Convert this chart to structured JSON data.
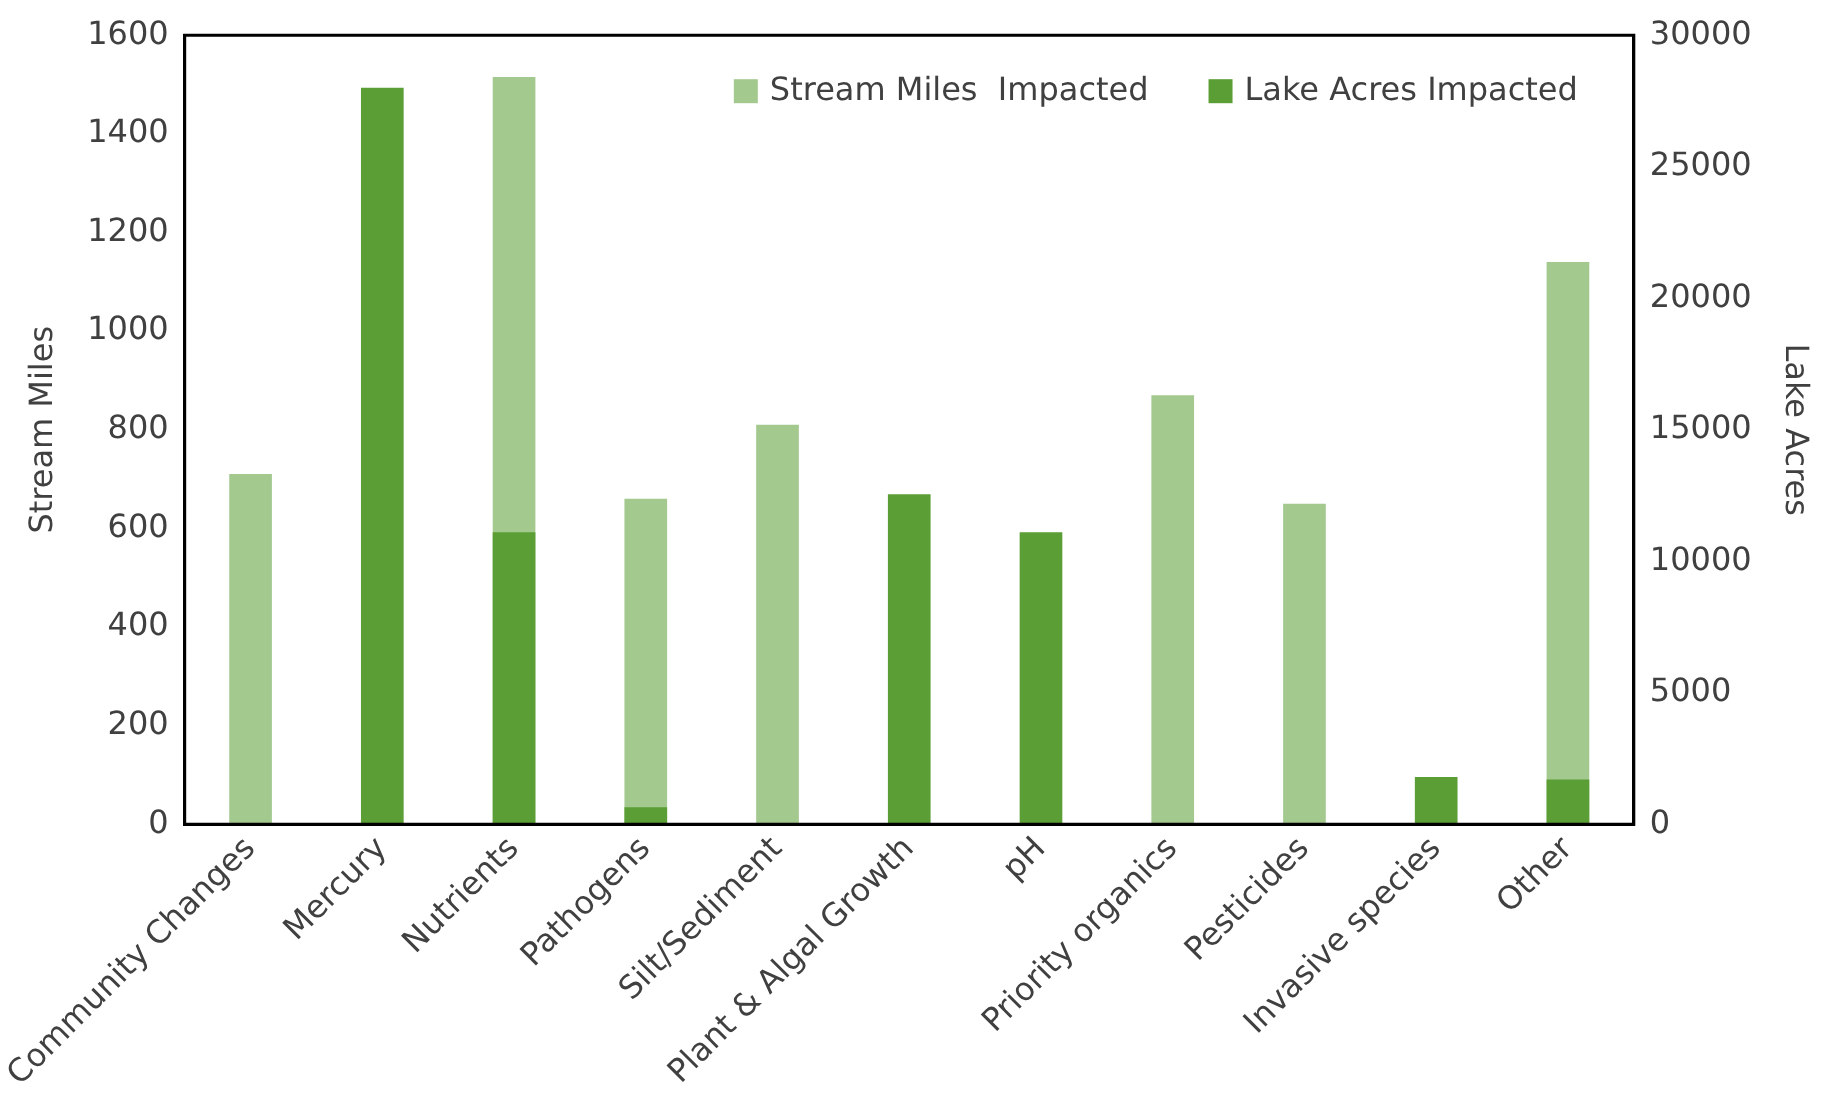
{
  "chart_data": {
    "type": "bar",
    "categories": [
      "Community Changes",
      "Mercury",
      "Nutrients",
      "Pathogens",
      "Silt/Sediment",
      "Plant & Algal Growth",
      "pH",
      "Priority organics",
      "Pesticides",
      "Invasive species",
      "Other"
    ],
    "series": [
      {
        "name": "Stream Miles  Impacted",
        "color": "#a3c98f",
        "axis": "y",
        "values": [
          710,
          null,
          1515,
          660,
          810,
          null,
          null,
          870,
          650,
          null,
          1140
        ]
      },
      {
        "name": "Lake Acres Impacted",
        "color": "#5a9e35",
        "axis": "y2",
        "values": [
          0,
          28000,
          11100,
          650,
          0,
          12550,
          11100,
          0,
          0,
          1800,
          1700
        ]
      }
    ],
    "ylabel": "Stream Miles",
    "y2label": "Lake Acres",
    "ylim": [
      0,
      1600
    ],
    "yticks": [
      0,
      200,
      400,
      600,
      800,
      1000,
      1200,
      1400,
      1600
    ],
    "y2lim": [
      0,
      30000
    ],
    "y2ticks": [
      0,
      5000,
      10000,
      15000,
      20000,
      25000,
      30000
    ],
    "grid": false,
    "legend": "top right"
  }
}
